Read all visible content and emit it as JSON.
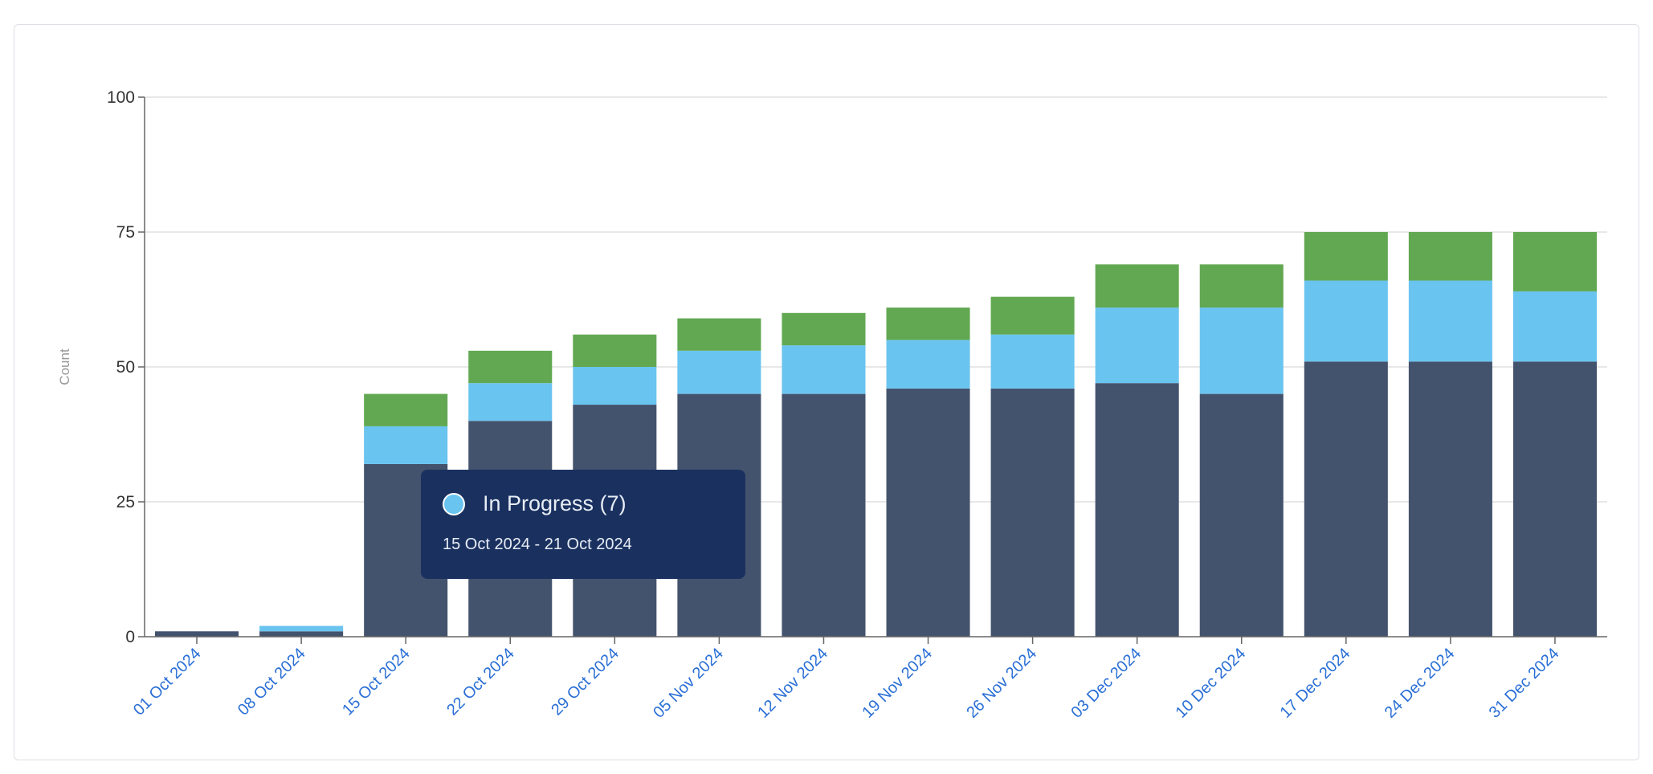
{
  "chart_data": {
    "type": "bar",
    "stacked": true,
    "ylabel": "Count",
    "xlabel": "",
    "ylim": [
      0,
      100
    ],
    "yticks": [
      0,
      25,
      50,
      75,
      100
    ],
    "grid": true,
    "categories": [
      "01 Oct 2024",
      "08 Oct 2024",
      "15 Oct 2024",
      "22 Oct 2024",
      "29 Oct 2024",
      "05 Nov 2024",
      "12 Nov 2024",
      "19 Nov 2024",
      "26 Nov 2024",
      "03 Dec 2024",
      "10 Dec 2024",
      "17 Dec 2024",
      "24 Dec 2024",
      "31 Dec 2024"
    ],
    "series": [
      {
        "color": "#44536d",
        "values": [
          1,
          1,
          32,
          40,
          43,
          45,
          45,
          46,
          46,
          47,
          45,
          51,
          51,
          51
        ]
      },
      {
        "name": "In Progress",
        "color": "#6ac4f0",
        "values": [
          0,
          1,
          7,
          7,
          7,
          8,
          9,
          9,
          10,
          14,
          16,
          15,
          15,
          13
        ]
      },
      {
        "color": "#62a852",
        "values": [
          0,
          0,
          6,
          6,
          6,
          6,
          6,
          6,
          7,
          8,
          8,
          9,
          9,
          11
        ]
      }
    ]
  },
  "tooltip": {
    "title": "In Progress (7)",
    "range": "15 Oct 2024 - 21 Oct 2024",
    "color": "#6ac4f0"
  }
}
